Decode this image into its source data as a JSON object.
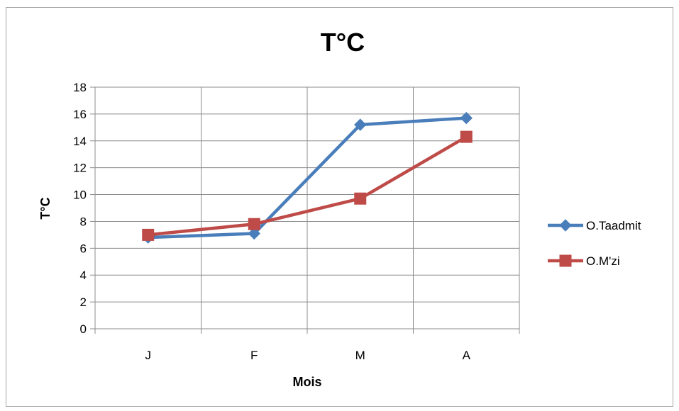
{
  "chart_data": {
    "type": "line",
    "title": "T°C",
    "xlabel": "Mois",
    "ylabel": "T°C",
    "categories": [
      "J",
      "F",
      "M",
      "A"
    ],
    "ylim": [
      0,
      18
    ],
    "yticks": [
      0,
      2,
      4,
      6,
      8,
      10,
      12,
      14,
      16,
      18
    ],
    "grid": true,
    "legend_position": "right",
    "series": [
      {
        "name": "O.Taadmit",
        "values": [
          6.8,
          7.1,
          15.2,
          15.7
        ],
        "color": "#4a7ebb",
        "marker": "diamond"
      },
      {
        "name": "O.M'zi",
        "values": [
          7.0,
          7.8,
          9.7,
          14.3
        ],
        "color": "#be4b48",
        "marker": "square"
      }
    ]
  }
}
